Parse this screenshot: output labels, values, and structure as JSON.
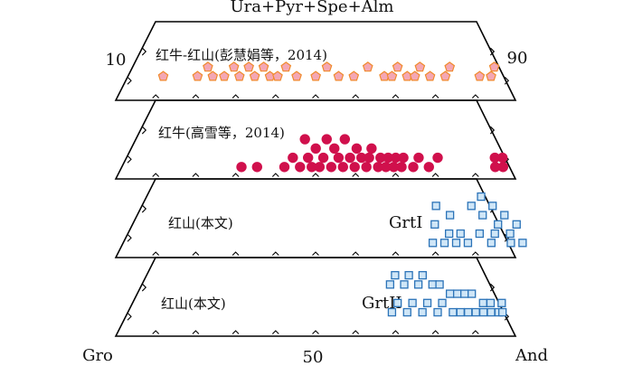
{
  "figure": {
    "apex_label": "Ura+Pyr+Spe+Alm",
    "left_label": "Gro",
    "right_label": "And",
    "bottom_mid_label": "50",
    "left_tick_label": "10",
    "right_tick_label": "90"
  },
  "panels": [
    {
      "label": "红牛-红山(彭慧娟等，2014)",
      "marker": "pentagon",
      "fill": "#f4a7b4",
      "stroke": "#f08a2c",
      "points": [
        {
          "and": 10,
          "apex": 2
        },
        {
          "and": 19,
          "apex": 2
        },
        {
          "and": 21,
          "apex": 3
        },
        {
          "and": 23,
          "apex": 2
        },
        {
          "and": 26,
          "apex": 2
        },
        {
          "and": 28,
          "apex": 3
        },
        {
          "and": 30,
          "apex": 2
        },
        {
          "and": 32,
          "apex": 3
        },
        {
          "and": 34,
          "apex": 2
        },
        {
          "and": 36,
          "apex": 3
        },
        {
          "and": 38,
          "apex": 2
        },
        {
          "and": 40,
          "apex": 2
        },
        {
          "and": 42,
          "apex": 3
        },
        {
          "and": 45,
          "apex": 2
        },
        {
          "and": 50,
          "apex": 2
        },
        {
          "and": 53,
          "apex": 3
        },
        {
          "and": 56,
          "apex": 2
        },
        {
          "and": 60,
          "apex": 2
        },
        {
          "and": 64,
          "apex": 3
        },
        {
          "and": 68,
          "apex": 2
        },
        {
          "and": 70,
          "apex": 2
        },
        {
          "and": 72,
          "apex": 3
        },
        {
          "and": 74,
          "apex": 2
        },
        {
          "and": 76,
          "apex": 2
        },
        {
          "and": 78,
          "apex": 3
        },
        {
          "and": 80,
          "apex": 2
        },
        {
          "and": 84,
          "apex": 2
        },
        {
          "and": 86,
          "apex": 3
        },
        {
          "and": 93,
          "apex": 2
        },
        {
          "and": 96,
          "apex": 2
        },
        {
          "and": 98,
          "apex": 3
        }
      ]
    },
    {
      "label": "红牛(高雪等，2014)",
      "marker": "circle",
      "fill": "#d0104c",
      "stroke": "#d0104c",
      "points": [
        {
          "and": 31,
          "apex": 1
        },
        {
          "and": 35,
          "apex": 1
        },
        {
          "and": 42,
          "apex": 1
        },
        {
          "and": 44,
          "apex": 2
        },
        {
          "and": 46,
          "apex": 1
        },
        {
          "and": 47,
          "apex": 4
        },
        {
          "and": 48,
          "apex": 2
        },
        {
          "and": 49,
          "apex": 1
        },
        {
          "and": 50,
          "apex": 3
        },
        {
          "and": 51,
          "apex": 1
        },
        {
          "and": 52,
          "apex": 2
        },
        {
          "and": 53,
          "apex": 4
        },
        {
          "and": 54,
          "apex": 1
        },
        {
          "and": 55,
          "apex": 3
        },
        {
          "and": 56,
          "apex": 2
        },
        {
          "and": 57,
          "apex": 1
        },
        {
          "and": 58,
          "apex": 4
        },
        {
          "and": 59,
          "apex": 2
        },
        {
          "and": 60,
          "apex": 1
        },
        {
          "and": 61,
          "apex": 3
        },
        {
          "and": 62,
          "apex": 2
        },
        {
          "and": 63,
          "apex": 1
        },
        {
          "and": 64,
          "apex": 2
        },
        {
          "and": 65,
          "apex": 3
        },
        {
          "and": 66,
          "apex": 1
        },
        {
          "and": 67,
          "apex": 2
        },
        {
          "and": 68,
          "apex": 1
        },
        {
          "and": 69,
          "apex": 2
        },
        {
          "and": 70,
          "apex": 1
        },
        {
          "and": 71,
          "apex": 2
        },
        {
          "and": 72,
          "apex": 1
        },
        {
          "and": 73,
          "apex": 2
        },
        {
          "and": 75,
          "apex": 1
        },
        {
          "and": 77,
          "apex": 2
        },
        {
          "and": 79,
          "apex": 1
        },
        {
          "and": 82,
          "apex": 2
        },
        {
          "and": 96,
          "apex": 1
        },
        {
          "and": 97,
          "apex": 2
        },
        {
          "and": 98,
          "apex": 1
        },
        {
          "and": 99,
          "apex": 2
        }
      ]
    },
    {
      "label": "红山(本文)",
      "tag": "GrtI",
      "marker": "square",
      "fill": "#cfe6f7",
      "stroke": "#2b73b8",
      "points": [
        {
          "and": 80,
          "apex": 1
        },
        {
          "and": 82,
          "apex": 3
        },
        {
          "and": 83,
          "apex": 1
        },
        {
          "and": 84,
          "apex": 5
        },
        {
          "and": 85,
          "apex": 2
        },
        {
          "and": 86,
          "apex": 1
        },
        {
          "and": 87,
          "apex": 4
        },
        {
          "and": 88,
          "apex": 2
        },
        {
          "and": 89,
          "apex": 1
        },
        {
          "and": 93,
          "apex": 2
        },
        {
          "and": 94,
          "apex": 5
        },
        {
          "and": 95,
          "apex": 1
        },
        {
          "and": 96,
          "apex": 4
        },
        {
          "and": 97,
          "apex": 2
        },
        {
          "and": 98,
          "apex": 6
        },
        {
          "and": 99,
          "apex": 3
        },
        {
          "and": 100,
          "apex": 1
        },
        {
          "and": 100,
          "apex": 5
        },
        {
          "and": 101,
          "apex": 2
        },
        {
          "and": 102,
          "apex": 4
        },
        {
          "and": 103,
          "apex": 1
        },
        {
          "and": 104,
          "apex": 3
        }
      ]
    },
    {
      "label": "红山(本文)",
      "tag": "GrtII",
      "marker": "square",
      "fill": "#cfe6f7",
      "stroke": "#2b73b8",
      "points": [
        {
          "and": 70,
          "apex": 2
        },
        {
          "and": 71,
          "apex": 5
        },
        {
          "and": 72,
          "apex": 3
        },
        {
          "and": 73,
          "apex": 6
        },
        {
          "and": 74,
          "apex": 2
        },
        {
          "and": 75,
          "apex": 5
        },
        {
          "and": 76,
          "apex": 3
        },
        {
          "and": 77,
          "apex": 6
        },
        {
          "and": 78,
          "apex": 2
        },
        {
          "and": 79,
          "apex": 5
        },
        {
          "and": 80,
          "apex": 3
        },
        {
          "and": 81,
          "apex": 6
        },
        {
          "and": 82,
          "apex": 2
        },
        {
          "and": 83,
          "apex": 5
        },
        {
          "and": 84,
          "apex": 3
        },
        {
          "and": 85,
          "apex": 5
        },
        {
          "and": 86,
          "apex": 2
        },
        {
          "and": 87,
          "apex": 4
        },
        {
          "and": 88,
          "apex": 2
        },
        {
          "and": 89,
          "apex": 4
        },
        {
          "and": 90,
          "apex": 2
        },
        {
          "and": 91,
          "apex": 4
        },
        {
          "and": 92,
          "apex": 2
        },
        {
          "and": 93,
          "apex": 4
        },
        {
          "and": 94,
          "apex": 2
        },
        {
          "and": 95,
          "apex": 3
        },
        {
          "and": 96,
          "apex": 2
        },
        {
          "and": 97,
          "apex": 3
        },
        {
          "and": 98,
          "apex": 2
        },
        {
          "and": 99,
          "apex": 2
        },
        {
          "and": 100,
          "apex": 3
        }
      ]
    }
  ]
}
